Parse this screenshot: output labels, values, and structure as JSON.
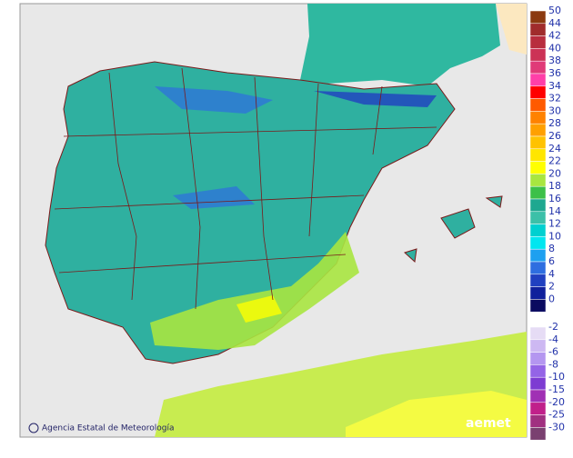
{
  "legend": {
    "positive": [
      {
        "label": 50,
        "color": "#8b3a10"
      },
      {
        "label": 44,
        "color": "#a02c2c"
      },
      {
        "label": 42,
        "color": "#b82d3e"
      },
      {
        "label": 40,
        "color": "#cc3356"
      },
      {
        "label": 38,
        "color": "#e03a78"
      },
      {
        "label": 36,
        "color": "#ff3fa8"
      },
      {
        "label": 34,
        "color": "#ff0000"
      },
      {
        "label": 32,
        "color": "#ff5a00"
      },
      {
        "label": 30,
        "color": "#ff8200"
      },
      {
        "label": 28,
        "color": "#ffa000"
      },
      {
        "label": 26,
        "color": "#ffc200"
      },
      {
        "label": 24,
        "color": "#ffe600"
      },
      {
        "label": 22,
        "color": "#ffff00"
      },
      {
        "label": 20,
        "color": "#a8e640"
      },
      {
        "label": 18,
        "color": "#3cc048"
      },
      {
        "label": 16,
        "color": "#1ea890"
      },
      {
        "label": 14,
        "color": "#3cc0a8"
      },
      {
        "label": 12,
        "color": "#00d0d0"
      },
      {
        "label": 10,
        "color": "#00e6f0"
      },
      {
        "label": 8,
        "color": "#1ea0f0"
      },
      {
        "label": 6,
        "color": "#2e6ee0"
      },
      {
        "label": 4,
        "color": "#2040c0"
      },
      {
        "label": 2,
        "color": "#10209c"
      },
      {
        "label": 0,
        "color": "#0a0a60"
      }
    ],
    "negative": [
      {
        "label": -2,
        "color": "#e6dcf5"
      },
      {
        "label": -4,
        "color": "#cdb8f2"
      },
      {
        "label": -6,
        "color": "#b496f0"
      },
      {
        "label": -8,
        "color": "#9464e6"
      },
      {
        "label": -10,
        "color": "#7d3cd2"
      },
      {
        "label": -15,
        "color": "#a030b4"
      },
      {
        "label": -20,
        "color": "#c0208a"
      },
      {
        "label": -25,
        "color": "#a03080"
      },
      {
        "label": -30,
        "color": "#7a4070"
      }
    ]
  },
  "footer": {
    "credit": "Agencia Estatal de Meteorología",
    "logo": "aemet"
  }
}
